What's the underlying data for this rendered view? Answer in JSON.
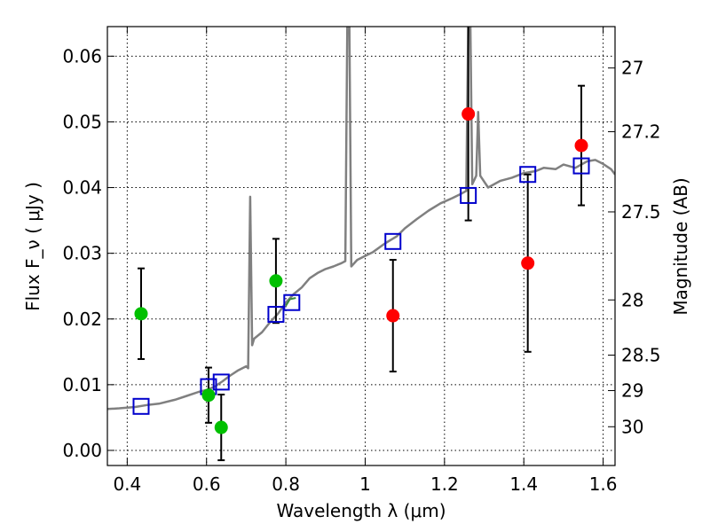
{
  "chart_data": {
    "type": "scatter",
    "xlabel": "Wavelength  λ (μm)",
    "ylabel": "Flux  F_ν  ( μJy )",
    "ylabel_right": "Magnitude (AB)",
    "xlim": [
      0.35,
      1.63
    ],
    "ylim": [
      -0.0023,
      0.0645
    ],
    "grid": true,
    "x_ticks": [
      {
        "value": 0.4,
        "label": "0.4"
      },
      {
        "value": 0.6,
        "label": "0.6"
      },
      {
        "value": 0.8,
        "label": "0.8"
      },
      {
        "value": 1.0,
        "label": "1"
      },
      {
        "value": 1.2,
        "label": "1.2"
      },
      {
        "value": 1.4,
        "label": "1.4"
      },
      {
        "value": 1.6,
        "label": "1.6"
      }
    ],
    "y_ticks": [
      {
        "value": 0.0,
        "label": "0.00"
      },
      {
        "value": 0.01,
        "label": "0.01"
      },
      {
        "value": 0.02,
        "label": "0.02"
      },
      {
        "value": 0.03,
        "label": "0.03"
      },
      {
        "value": 0.04,
        "label": "0.04"
      },
      {
        "value": 0.05,
        "label": "0.05"
      },
      {
        "value": 0.06,
        "label": "0.06"
      }
    ],
    "right_ticks": [
      {
        "flux": 0.0582,
        "label": "27"
      },
      {
        "flux": 0.0485,
        "label": "27.2"
      },
      {
        "flux": 0.0363,
        "label": "27.5"
      },
      {
        "flux": 0.0229,
        "label": "28"
      },
      {
        "flux": 0.0145,
        "label": "28.5"
      },
      {
        "flux": 0.0091,
        "label": "29"
      },
      {
        "flux": 0.0036,
        "label": "30"
      }
    ],
    "colors": {
      "model": "#808080",
      "green": "#00c000",
      "red": "#ff0000",
      "square": "#0000cc",
      "errorbar": "#000000"
    },
    "model_spectrum": [
      [
        0.35,
        0.0063
      ],
      [
        0.38,
        0.0064
      ],
      [
        0.42,
        0.0066
      ],
      [
        0.45,
        0.0069
      ],
      [
        0.48,
        0.0071
      ],
      [
        0.52,
        0.0077
      ],
      [
        0.55,
        0.0083
      ],
      [
        0.58,
        0.0089
      ],
      [
        0.6,
        0.0092
      ],
      [
        0.62,
        0.0097
      ],
      [
        0.64,
        0.0105
      ],
      [
        0.66,
        0.0114
      ],
      [
        0.68,
        0.0122
      ],
      [
        0.7,
        0.0128
      ],
      [
        0.705,
        0.0125
      ],
      [
        0.71,
        0.0386
      ],
      [
        0.715,
        0.016
      ],
      [
        0.72,
        0.017
      ],
      [
        0.74,
        0.018
      ],
      [
        0.76,
        0.0195
      ],
      [
        0.78,
        0.0208
      ],
      [
        0.8,
        0.0225
      ],
      [
        0.82,
        0.0238
      ],
      [
        0.84,
        0.0248
      ],
      [
        0.86,
        0.0262
      ],
      [
        0.88,
        0.027
      ],
      [
        0.9,
        0.0276
      ],
      [
        0.92,
        0.028
      ],
      [
        0.94,
        0.0285
      ],
      [
        0.95,
        0.0288
      ],
      [
        0.955,
        0.066
      ],
      [
        0.96,
        0.066
      ],
      [
        0.965,
        0.028
      ],
      [
        0.98,
        0.029
      ],
      [
        1.0,
        0.0296
      ],
      [
        1.02,
        0.0302
      ],
      [
        1.05,
        0.0315
      ],
      [
        1.08,
        0.0326
      ],
      [
        1.1,
        0.0338
      ],
      [
        1.13,
        0.0352
      ],
      [
        1.16,
        0.0365
      ],
      [
        1.19,
        0.0376
      ],
      [
        1.22,
        0.0384
      ],
      [
        1.24,
        0.039
      ],
      [
        1.255,
        0.0395
      ],
      [
        1.26,
        0.066
      ],
      [
        1.265,
        0.066
      ],
      [
        1.27,
        0.0405
      ],
      [
        1.28,
        0.0418
      ],
      [
        1.285,
        0.0515
      ],
      [
        1.29,
        0.0418
      ],
      [
        1.31,
        0.04
      ],
      [
        1.34,
        0.041
      ],
      [
        1.37,
        0.0415
      ],
      [
        1.4,
        0.0422
      ],
      [
        1.43,
        0.0425
      ],
      [
        1.45,
        0.043
      ],
      [
        1.48,
        0.0428
      ],
      [
        1.5,
        0.0435
      ],
      [
        1.53,
        0.043
      ],
      [
        1.56,
        0.044
      ],
      [
        1.58,
        0.0442
      ],
      [
        1.6,
        0.0436
      ],
      [
        1.62,
        0.0428
      ],
      [
        1.63,
        0.042
      ]
    ],
    "green_points": [
      {
        "x": 0.435,
        "y": 0.0208,
        "err": 0.0069
      },
      {
        "x": 0.605,
        "y": 0.0084,
        "err": 0.0042
      },
      {
        "x": 0.637,
        "y": 0.0035,
        "err": 0.005
      },
      {
        "x": 0.775,
        "y": 0.0258,
        "err": 0.0064
      }
    ],
    "red_points": [
      {
        "x": 1.07,
        "y": 0.0205,
        "err": 0.0085
      },
      {
        "x": 1.26,
        "y": 0.0512,
        "err": 0.0162
      },
      {
        "x": 1.41,
        "y": 0.0285,
        "err": 0.0135
      },
      {
        "x": 1.545,
        "y": 0.0464,
        "err": 0.0091
      }
    ],
    "square_points": [
      {
        "x": 0.435,
        "y": 0.0067
      },
      {
        "x": 0.605,
        "y": 0.0097
      },
      {
        "x": 0.637,
        "y": 0.0104
      },
      {
        "x": 0.775,
        "y": 0.0207
      },
      {
        "x": 0.815,
        "y": 0.0225
      },
      {
        "x": 1.07,
        "y": 0.0318
      },
      {
        "x": 1.26,
        "y": 0.0388
      },
      {
        "x": 1.41,
        "y": 0.042
      },
      {
        "x": 1.545,
        "y": 0.0433
      }
    ],
    "green_curve_segment": [
      [
        0.8,
        0.022
      ],
      [
        0.81,
        0.023
      ],
      [
        0.825,
        0.0232
      ]
    ]
  }
}
